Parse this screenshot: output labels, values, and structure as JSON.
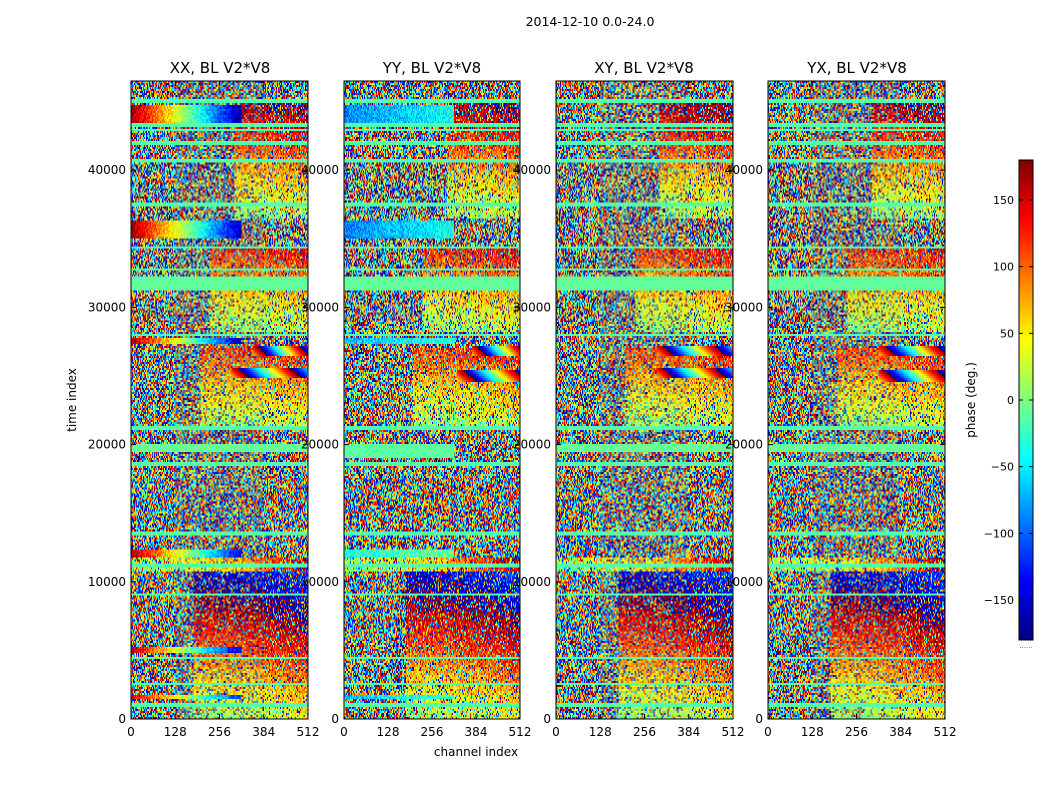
{
  "figure": {
    "suptitle": "2014-12-10 0.0-24.0",
    "shared_xlabel": "channel index",
    "shared_ylabel": "time index"
  },
  "chart_data": [
    {
      "type": "heatmap",
      "title": "XX, BL V2*V8",
      "xlim": [
        0,
        512
      ],
      "ylim": [
        0,
        46500
      ],
      "xticks": [
        0,
        128,
        256,
        384,
        512
      ],
      "yticks": [
        0,
        10000,
        20000,
        30000,
        40000
      ],
      "ytick_labels": [
        "0",
        "10000",
        "20000",
        "30000",
        "40000"
      ],
      "xlabel": "",
      "ylabel": "time index",
      "seed": 11,
      "uniform_bands": [
        {
          "t0": 31200,
          "t1": 32200,
          "c0": 0,
          "c1": 512,
          "phase": -10
        },
        {
          "t0": 19400,
          "t1": 20000,
          "c0": 0,
          "c1": 512,
          "phase": -8
        }
      ],
      "gradient_bands": [
        {
          "t0": 43500,
          "t1": 44700,
          "c0": 0,
          "c1": 320,
          "p0": 175,
          "p1": -170
        },
        {
          "t0": 35000,
          "t1": 36300,
          "c0": 0,
          "c1": 320,
          "p0": 175,
          "p1": -160
        },
        {
          "t0": 27300,
          "t1": 27800,
          "c0": 0,
          "c1": 320,
          "p0": 170,
          "p1": -160
        },
        {
          "t0": 11800,
          "t1": 12300,
          "c0": 0,
          "c1": 320,
          "p0": 170,
          "p1": -140
        },
        {
          "t0": 4800,
          "t1": 5200,
          "c0": 0,
          "c1": 320,
          "p0": 160,
          "p1": -150
        },
        {
          "t0": 1400,
          "t1": 1800,
          "c0": 0,
          "c1": 320,
          "p0": 150,
          "p1": -120
        }
      ],
      "fringe_blobs": [
        {
          "tc": 26800,
          "cc": 440,
          "st": 350,
          "sc": 40
        },
        {
          "tc": 25200,
          "cc": 400,
          "st": 350,
          "sc": 50
        }
      ]
    },
    {
      "type": "heatmap",
      "title": "YY, BL V2*V8",
      "xlim": [
        0,
        512
      ],
      "ylim": [
        0,
        46500
      ],
      "xticks": [
        0,
        128,
        256,
        384,
        512
      ],
      "yticks": [
        0,
        10000,
        20000,
        30000,
        40000
      ],
      "ytick_labels": [
        "0",
        "10000",
        "20000",
        "30000",
        "40000"
      ],
      "xlabel": "channel index",
      "ylabel": "",
      "seed": 23,
      "uniform_bands": [
        {
          "t0": 31200,
          "t1": 32200,
          "c0": 0,
          "c1": 512,
          "phase": -10
        },
        {
          "t0": 19000,
          "t1": 20000,
          "c0": 0,
          "c1": 320,
          "phase": -12
        }
      ],
      "gradient_bands": [
        {
          "t0": 43500,
          "t1": 44700,
          "c0": 0,
          "c1": 320,
          "p0": -90,
          "p1": -40
        },
        {
          "t0": 35000,
          "t1": 36300,
          "c0": 0,
          "c1": 320,
          "p0": -90,
          "p1": -40
        },
        {
          "t0": 27300,
          "t1": 27800,
          "c0": 0,
          "c1": 320,
          "p0": -70,
          "p1": -30
        },
        {
          "t0": 11800,
          "t1": 12300,
          "c0": 0,
          "c1": 320,
          "p0": -40,
          "p1": -5
        },
        {
          "t0": 1400,
          "t1": 1800,
          "c0": 0,
          "c1": 320,
          "p0": -70,
          "p1": -20
        }
      ],
      "fringe_blobs": [
        {
          "tc": 26800,
          "cc": 460,
          "st": 350,
          "sc": 40
        },
        {
          "tc": 25000,
          "cc": 440,
          "st": 350,
          "sc": 50
        }
      ]
    },
    {
      "type": "heatmap",
      "title": "XY, BL V2*V8",
      "xlim": [
        0,
        512
      ],
      "ylim": [
        0,
        46500
      ],
      "xticks": [
        0,
        128,
        256,
        384,
        512
      ],
      "yticks": [
        0,
        10000,
        20000,
        30000,
        40000
      ],
      "ytick_labels": [
        "0",
        "10000",
        "20000",
        "30000",
        "40000"
      ],
      "xlabel": "",
      "ylabel": "",
      "seed": 37,
      "uniform_bands": [
        {
          "t0": 31200,
          "t1": 32200,
          "c0": 0,
          "c1": 512,
          "phase": -10
        },
        {
          "t0": 19400,
          "t1": 20000,
          "c0": 0,
          "c1": 512,
          "phase": -8
        }
      ],
      "gradient_bands": [],
      "fringe_blobs": [
        {
          "tc": 26800,
          "cc": 400,
          "st": 350,
          "sc": 50
        },
        {
          "tc": 25200,
          "cc": 400,
          "st": 350,
          "sc": 50
        }
      ]
    },
    {
      "type": "heatmap",
      "title": "YX, BL V2*V8",
      "xlim": [
        0,
        512
      ],
      "ylim": [
        0,
        46500
      ],
      "xticks": [
        0,
        128,
        256,
        384,
        512
      ],
      "yticks": [
        0,
        10000,
        20000,
        30000,
        40000
      ],
      "ytick_labels": [
        "0",
        "10000",
        "20000",
        "30000",
        "40000"
      ],
      "xlabel": "",
      "ylabel": "",
      "seed": 53,
      "uniform_bands": [
        {
          "t0": 31200,
          "t1": 32200,
          "c0": 0,
          "c1": 512,
          "phase": -10
        },
        {
          "t0": 19400,
          "t1": 20000,
          "c0": 0,
          "c1": 512,
          "phase": -8
        }
      ],
      "gradient_bands": [],
      "fringe_blobs": [
        {
          "tc": 26800,
          "cc": 430,
          "st": 350,
          "sc": 50
        },
        {
          "tc": 25000,
          "cc": 430,
          "st": 350,
          "sc": 50
        }
      ]
    }
  ],
  "colorbar": {
    "label": "phase (deg.)",
    "range": [
      -180,
      180
    ],
    "ticks": [
      150,
      100,
      50,
      0,
      -50,
      -100,
      -150
    ],
    "tick_labels": [
      "150",
      "100",
      "50",
      "0",
      "−50",
      "−100",
      "−150"
    ],
    "colormap": "jet",
    "colors": [
      "#00007f",
      "#0000ff",
      "#007fff",
      "#00ffff",
      "#7fff7f",
      "#ffff00",
      "#ff7f00",
      "#ff0000",
      "#7f0000"
    ],
    "bottom_note": "......"
  },
  "feature_shared": {
    "flag_bands_t": [
      [
        44900,
        45200
      ],
      [
        43200,
        43400
      ],
      [
        42800,
        43000
      ],
      [
        41900,
        42100
      ],
      [
        40600,
        40800
      ],
      [
        37400,
        37600
      ],
      [
        34300,
        34500
      ],
      [
        32700,
        32900
      ],
      [
        27900,
        28100
      ],
      [
        21100,
        21300
      ],
      [
        18500,
        18700
      ],
      [
        13400,
        13600
      ],
      [
        11100,
        11300
      ],
      [
        9000,
        9200
      ],
      [
        4300,
        4500
      ],
      [
        2400,
        2600
      ],
      [
        900,
        1100
      ]
    ],
    "flag_phase": -15,
    "fringe_ranges": [
      [
        0,
        10800,
        180,
        512,
        0.018
      ],
      [
        10800,
        11700,
        0,
        512,
        0.03
      ],
      [
        21200,
        27000,
        200,
        512,
        0.012
      ],
      [
        28200,
        34300,
        230,
        512,
        0.014
      ],
      [
        36500,
        45000,
        300,
        512,
        0.02
      ]
    ]
  }
}
